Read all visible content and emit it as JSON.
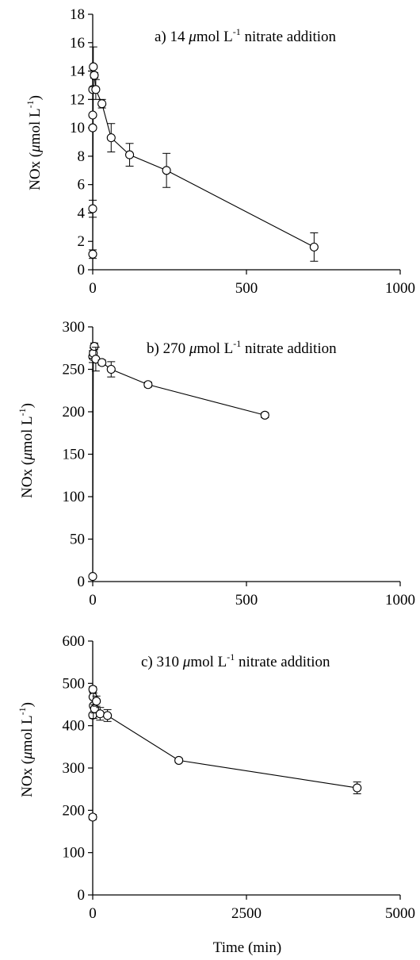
{
  "chart_data": [
    {
      "type": "line",
      "annotation": {
        "prefix": "a) 14 ",
        "mu": "μ",
        "unit": "mol L",
        "sup": "-1",
        "suffix": " nitrate addition"
      },
      "ylabel": {
        "main": "NOx (",
        "mu": "μ",
        "unit": "mol L",
        "sup": "-1",
        "close": ")"
      },
      "xlim": [
        0,
        1000
      ],
      "ylim": [
        0,
        18
      ],
      "xticks": [
        0,
        500,
        1000
      ],
      "yticks": [
        0,
        2,
        4,
        6,
        8,
        10,
        12,
        14,
        16,
        18
      ],
      "x_tick_labels": [
        "0",
        "500",
        "1000"
      ],
      "y_tick_labels": [
        "0",
        "2",
        "4",
        "6",
        "8",
        "10",
        "12",
        "14",
        "16",
        "18"
      ],
      "points": [
        {
          "x": 0,
          "y": 1.1,
          "err": 0.3
        },
        {
          "x": 0,
          "y": 4.3,
          "err": 0.6
        },
        {
          "x": 0,
          "y": 10.0,
          "err": 0.0
        },
        {
          "x": 0,
          "y": 10.9,
          "err": 0.0
        },
        {
          "x": 0,
          "y": 12.7,
          "err": 0.0
        },
        {
          "x": 2,
          "y": 14.3,
          "err": 1.4
        },
        {
          "x": 5,
          "y": 13.7,
          "err": 0.2
        },
        {
          "x": 10,
          "y": 12.7,
          "err": 0.7
        },
        {
          "x": 30,
          "y": 11.7,
          "err": 0.3
        },
        {
          "x": 60,
          "y": 9.3,
          "err": 1.0
        },
        {
          "x": 120,
          "y": 8.1,
          "err": 0.8
        },
        {
          "x": 240,
          "y": 7.0,
          "err": 1.2
        },
        {
          "x": 720,
          "y": 1.6,
          "err": 1.0
        }
      ],
      "line_x": [
        0,
        2,
        5,
        10,
        30,
        60,
        120,
        240,
        720
      ],
      "line_y": [
        1.1,
        14.3,
        13.7,
        12.7,
        11.7,
        9.3,
        8.1,
        7.0,
        1.6
      ]
    },
    {
      "type": "line",
      "annotation": {
        "prefix": "b) 270 ",
        "mu": "μ",
        "unit": "mol L",
        "sup": "-1",
        "suffix": " nitrate addition"
      },
      "ylabel": {
        "main": "NOx (",
        "mu": "μ",
        "unit": "mol L",
        "sup": "-1",
        "close": ")"
      },
      "xlim": [
        0,
        1000
      ],
      "ylim": [
        0,
        300
      ],
      "xticks": [
        0,
        500,
        1000
      ],
      "yticks": [
        0,
        50,
        100,
        150,
        200,
        250,
        300
      ],
      "x_tick_labels": [
        "0",
        "500",
        "1000"
      ],
      "y_tick_labels": [
        "0",
        "50",
        "100",
        "150",
        "200",
        "250",
        "300"
      ],
      "points": [
        {
          "x": 0,
          "y": 6,
          "err": 0
        },
        {
          "x": 0,
          "y": 265,
          "err": 7
        },
        {
          "x": 2,
          "y": 269,
          "err": 6
        },
        {
          "x": 5,
          "y": 277,
          "err": 4
        },
        {
          "x": 10,
          "y": 262,
          "err": 14
        },
        {
          "x": 30,
          "y": 258,
          "err": 3
        },
        {
          "x": 60,
          "y": 250,
          "err": 9
        },
        {
          "x": 180,
          "y": 232,
          "err": 3
        },
        {
          "x": 560,
          "y": 196,
          "err": 3
        }
      ],
      "line_x": [
        0,
        2,
        5,
        10,
        30,
        60,
        180,
        560
      ],
      "line_y": [
        6,
        269,
        277,
        262,
        258,
        250,
        232,
        196
      ]
    },
    {
      "type": "line",
      "annotation": {
        "prefix": "c) 310 ",
        "mu": "μ",
        "unit": "mol L",
        "sup": "-1",
        "suffix": " nitrate addition"
      },
      "ylabel": {
        "main": "NOx (",
        "mu": "μ",
        "unit": "mol L",
        "sup": "-1",
        "close": ")"
      },
      "xlabel": "Time (min)",
      "xlim": [
        0,
        5000
      ],
      "ylim": [
        0,
        600
      ],
      "xticks": [
        0,
        2500,
        5000
      ],
      "yticks": [
        0,
        100,
        200,
        300,
        400,
        500,
        600
      ],
      "x_tick_labels": [
        "0",
        "2500",
        "5000"
      ],
      "y_tick_labels": [
        "0",
        "100",
        "200",
        "300",
        "400",
        "500",
        "600"
      ],
      "points": [
        {
          "x": 0,
          "y": 184,
          "err": 6
        },
        {
          "x": 0,
          "y": 425,
          "err": 0
        },
        {
          "x": 2,
          "y": 486,
          "err": 6
        },
        {
          "x": 5,
          "y": 468,
          "err": 0
        },
        {
          "x": 10,
          "y": 447,
          "err": 30
        },
        {
          "x": 30,
          "y": 440,
          "err": 10
        },
        {
          "x": 60,
          "y": 458,
          "err": 12
        },
        {
          "x": 120,
          "y": 428,
          "err": 15
        },
        {
          "x": 240,
          "y": 424,
          "err": 14
        },
        {
          "x": 1400,
          "y": 318,
          "err": 5
        },
        {
          "x": 4300,
          "y": 253,
          "err": 14
        }
      ],
      "line_x": [
        0,
        2,
        10,
        120,
        240,
        1400,
        4300
      ],
      "line_y": [
        184,
        486,
        447,
        428,
        424,
        318,
        253
      ]
    }
  ]
}
